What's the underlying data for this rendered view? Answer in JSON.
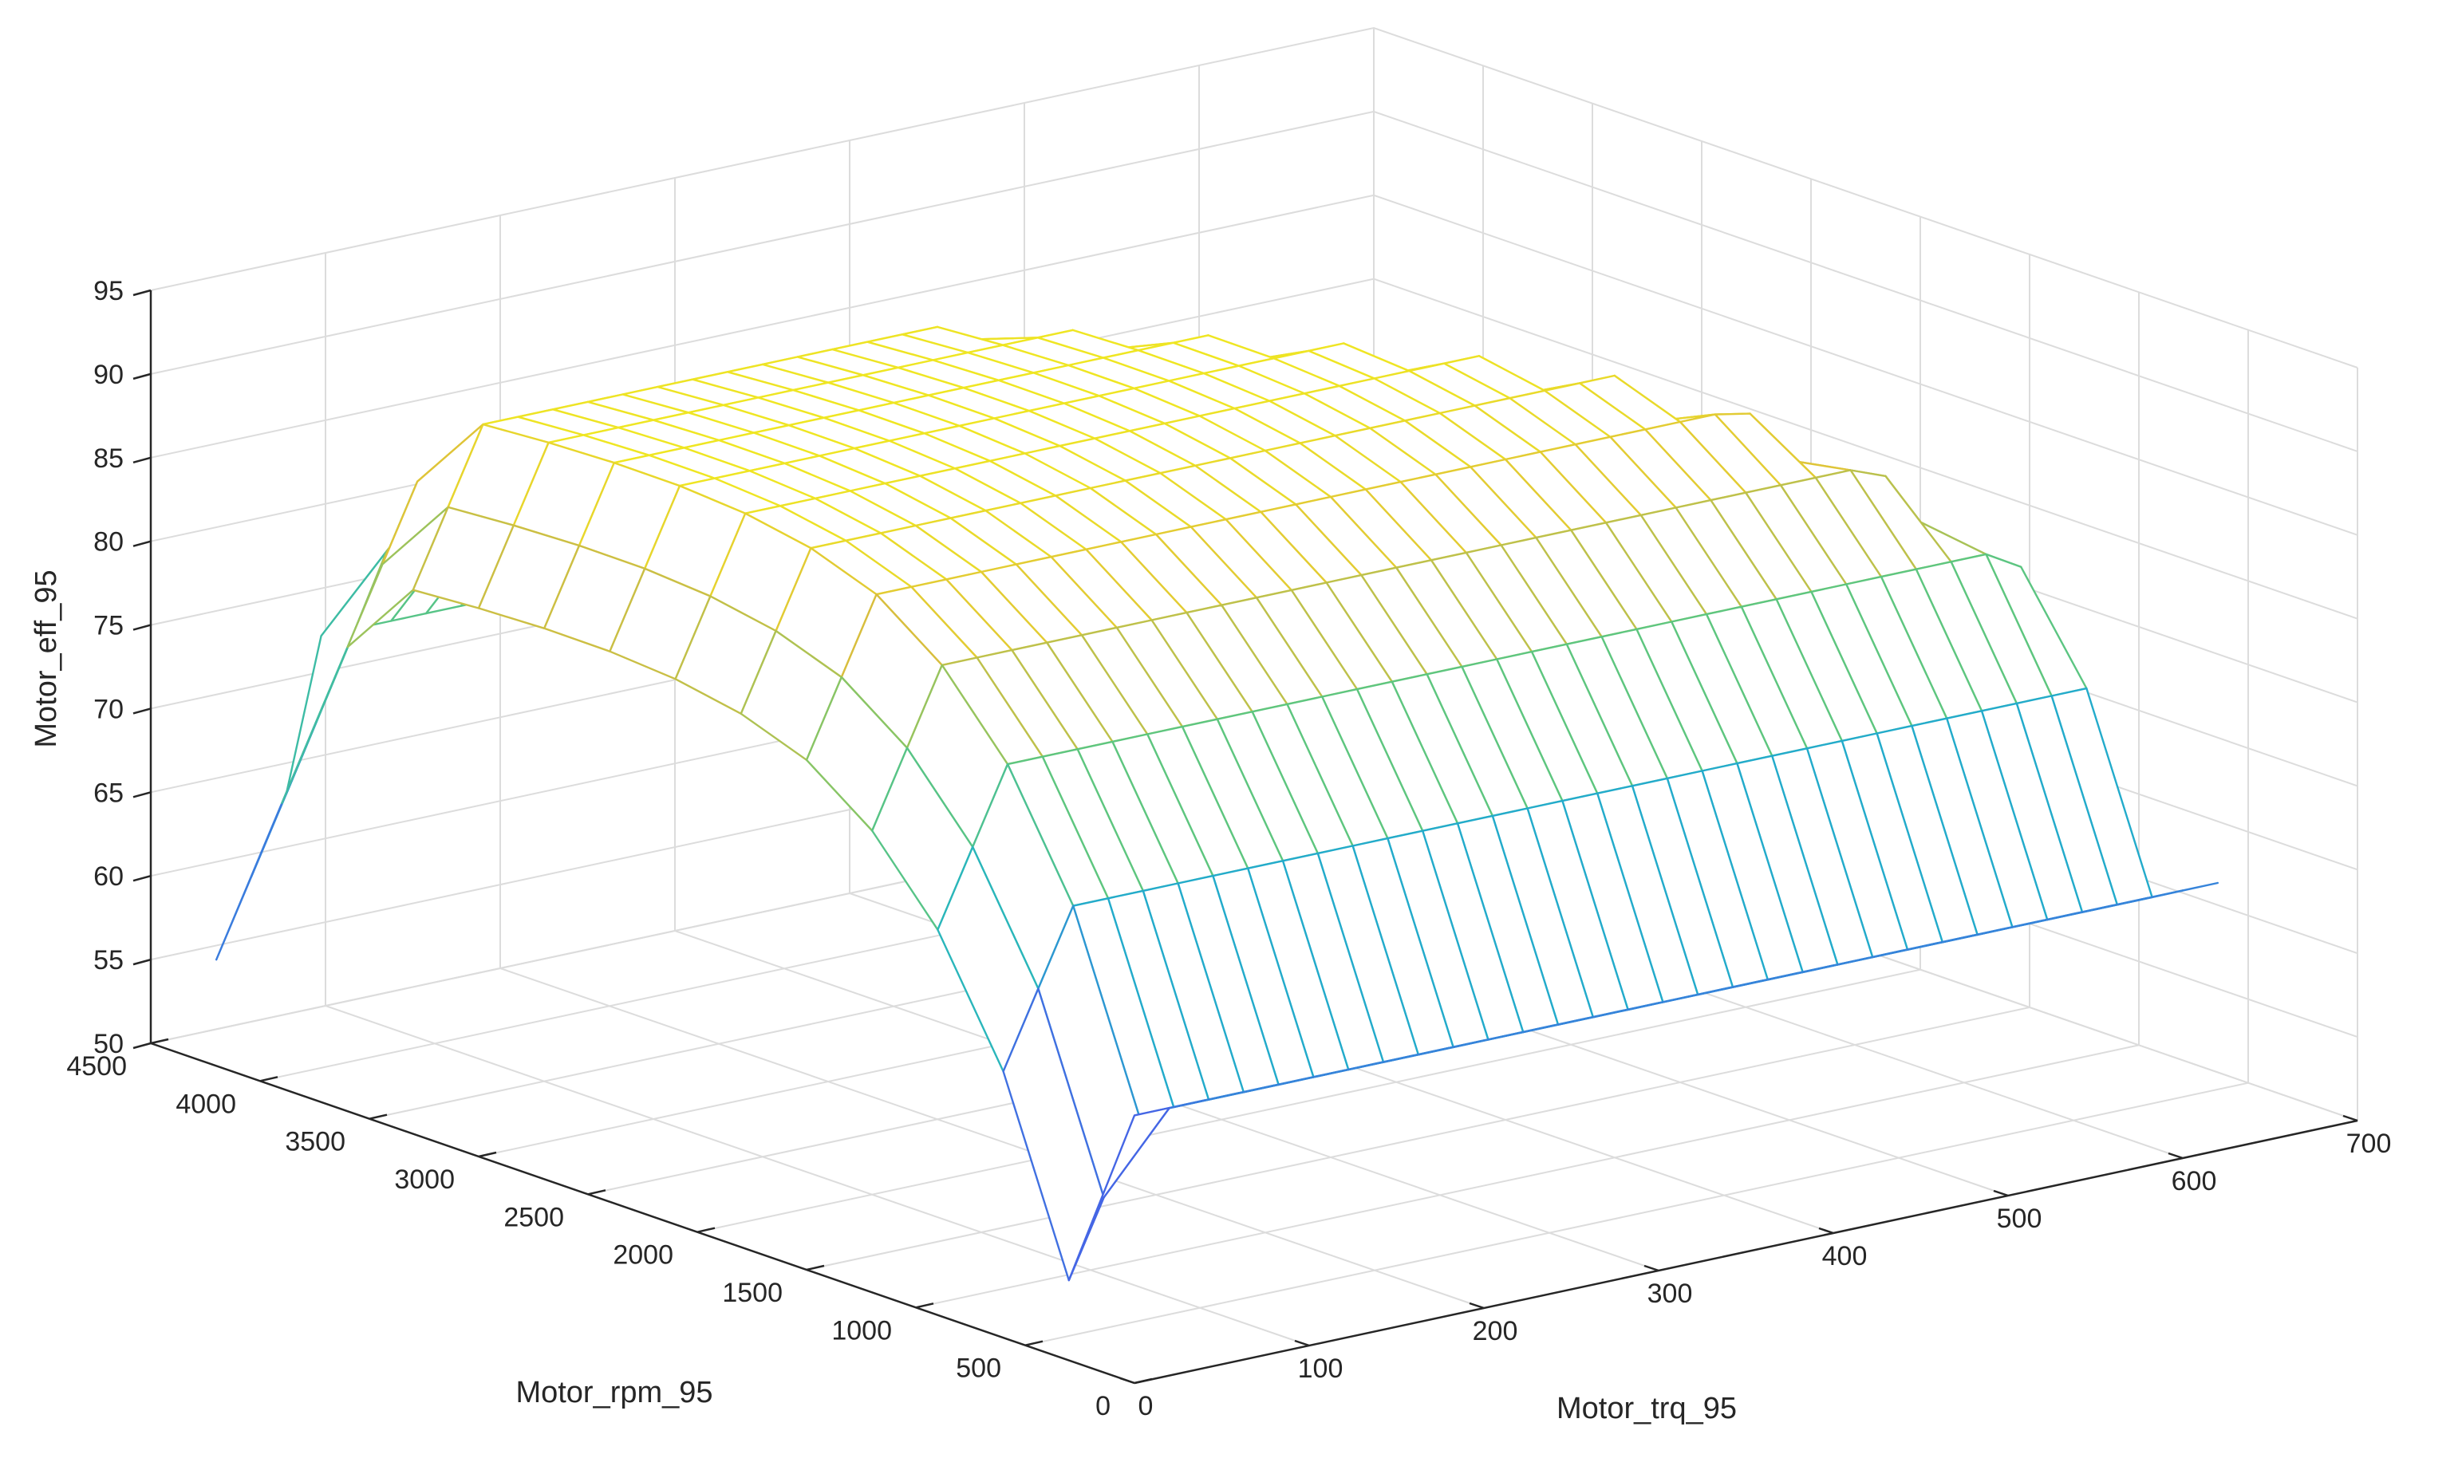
{
  "chart_data": {
    "type": "surface",
    "xlabel": "Motor_trq_95",
    "ylabel": "Motor_rpm_95",
    "zlabel": "Motor_eff_95",
    "xlim": [
      0,
      700
    ],
    "ylim": [
      0,
      4500
    ],
    "zlim": [
      50,
      95
    ],
    "xticks": [
      "0",
      "100",
      "200",
      "300",
      "400",
      "500",
      "600",
      "700"
    ],
    "yticks": [
      "0",
      "500",
      "1000",
      "1500",
      "2000",
      "2500",
      "3000",
      "3500",
      "4000",
      "4500"
    ],
    "zticks": [
      "50",
      "55",
      "60",
      "65",
      "70",
      "75",
      "80",
      "85",
      "90",
      "95"
    ],
    "grid": true,
    "colormap": "parula",
    "colors": {
      "low": "#3e26a8",
      "mid": "#1fb3c8",
      "high": "#f9fb15"
    },
    "torque_grid": [
      0,
      20,
      40,
      60,
      80,
      100,
      120,
      140,
      160,
      180,
      200,
      220,
      240,
      260,
      280,
      300,
      320,
      340,
      360,
      380,
      400,
      420,
      440,
      460,
      480,
      500,
      520,
      540,
      560,
      580,
      600,
      620
    ],
    "rpm_grid": [
      0,
      300,
      600,
      900,
      1200,
      1500,
      1800,
      2100,
      2400,
      2700,
      3000,
      3300,
      3600,
      3900,
      4200
    ],
    "peak_efficiency": 94,
    "min_efficiency": 52
  }
}
